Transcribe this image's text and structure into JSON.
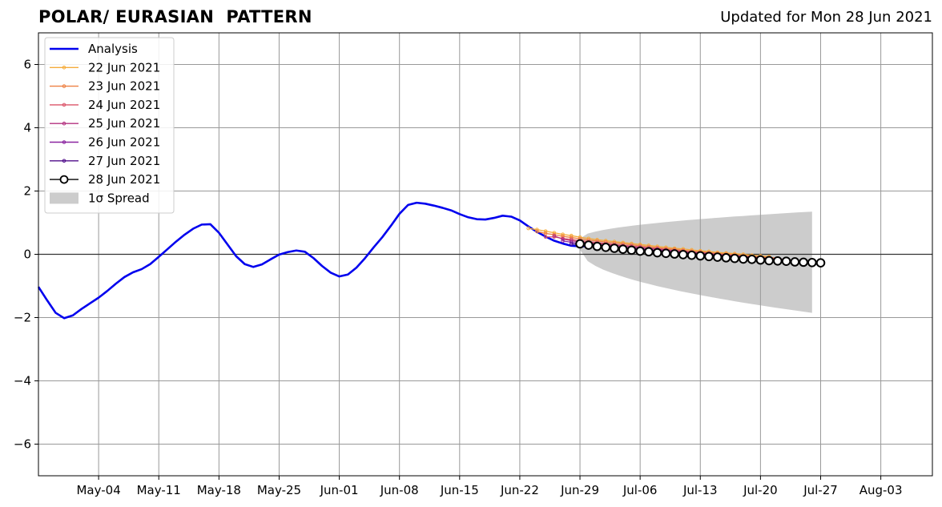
{
  "header": {
    "title": "POLAR/ EURASIAN  PATTERN",
    "updated": "Updated for Mon 28 Jun 2021"
  },
  "chart_data": {
    "type": "line",
    "title": "POLAR/ EURASIAN  PATTERN",
    "xlabel": "",
    "ylabel": "",
    "x_axis": {
      "type": "date",
      "min": "2021-04-27",
      "max": "2021-08-09",
      "ticks": [
        {
          "date": "2021-05-04",
          "label": "May-04"
        },
        {
          "date": "2021-05-11",
          "label": "May-11"
        },
        {
          "date": "2021-05-18",
          "label": "May-18"
        },
        {
          "date": "2021-05-25",
          "label": "May-25"
        },
        {
          "date": "2021-06-01",
          "label": "Jun-01"
        },
        {
          "date": "2021-06-08",
          "label": "Jun-08"
        },
        {
          "date": "2021-06-15",
          "label": "Jun-15"
        },
        {
          "date": "2021-06-22",
          "label": "Jun-22"
        },
        {
          "date": "2021-06-29",
          "label": "Jun-29"
        },
        {
          "date": "2021-07-06",
          "label": "Jul-06"
        },
        {
          "date": "2021-07-13",
          "label": "Jul-13"
        },
        {
          "date": "2021-07-20",
          "label": "Jul-20"
        },
        {
          "date": "2021-07-27",
          "label": "Jul-27"
        },
        {
          "date": "2021-08-03",
          "label": "Aug-03"
        }
      ]
    },
    "y_axis": {
      "min": -7,
      "max": 7,
      "ticks": [
        {
          "value": -6,
          "label": "−6"
        },
        {
          "value": -4,
          "label": "−4"
        },
        {
          "value": -2,
          "label": "−2"
        },
        {
          "value": 0,
          "label": "0"
        },
        {
          "value": 2,
          "label": "2"
        },
        {
          "value": 4,
          "label": "4"
        },
        {
          "value": 6,
          "label": "6"
        }
      ]
    },
    "grid": true,
    "zero_line": true,
    "legend_position": "upper-left",
    "analysis": {
      "name": "Analysis",
      "color": "#0000ee",
      "start_date": "2021-04-27",
      "values": [
        -1.03,
        -1.45,
        -1.85,
        -2.02,
        -1.93,
        -1.73,
        -1.55,
        -1.37,
        -1.16,
        -0.93,
        -0.72,
        -0.57,
        -0.47,
        -0.31,
        -0.08,
        0.16,
        0.4,
        0.62,
        0.81,
        0.94,
        0.95,
        0.68,
        0.31,
        -0.06,
        -0.31,
        -0.4,
        -0.32,
        -0.16,
        -0.01,
        0.07,
        0.12,
        0.08,
        -0.12,
        -0.37,
        -0.58,
        -0.7,
        -0.64,
        -0.42,
        -0.12,
        0.22,
        0.54,
        0.9,
        1.28,
        1.56,
        1.63,
        1.6,
        1.54,
        1.47,
        1.39,
        1.27,
        1.17,
        1.11,
        1.1,
        1.15,
        1.22,
        1.19,
        1.07,
        0.88,
        0.71,
        0.56,
        0.43,
        0.34,
        0.27,
        0.25,
        0.26
      ]
    },
    "forecasts": [
      {
        "name": "22 Jun 2021",
        "color": "#f5ac3c",
        "start_date": "2021-06-23",
        "values": [
          0.82,
          0.78,
          0.73,
          0.68,
          0.63,
          0.59,
          0.54,
          0.5,
          0.46,
          0.43,
          0.4,
          0.37,
          0.34,
          0.31,
          0.28,
          0.25,
          0.22,
          0.19,
          0.17,
          0.14,
          0.11,
          0.09,
          0.06,
          0.04,
          0.02,
          0.0,
          -0.03,
          -0.05,
          -0.07
        ]
      },
      {
        "name": "23 Jun 2021",
        "color": "#ee8043",
        "start_date": "2021-06-24",
        "values": [
          0.72,
          0.66,
          0.62,
          0.57,
          0.53,
          0.49,
          0.45,
          0.42,
          0.39,
          0.36,
          0.33,
          0.3,
          0.27,
          0.24,
          0.21,
          0.18,
          0.16,
          0.13,
          0.1,
          0.08,
          0.05,
          0.03,
          0.01,
          -0.01,
          -0.04,
          -0.06,
          -0.08,
          -0.1,
          -0.12
        ]
      },
      {
        "name": "24 Jun 2021",
        "color": "#dc5469",
        "start_date": "2021-06-25",
        "values": [
          0.55,
          0.55,
          0.5,
          0.47,
          0.43,
          0.4,
          0.37,
          0.34,
          0.31,
          0.28,
          0.26,
          0.23,
          0.2,
          0.18,
          0.15,
          0.12,
          0.1,
          0.07,
          0.05,
          0.03,
          0.0,
          -0.02,
          -0.04,
          -0.06,
          -0.09,
          -0.11,
          -0.13,
          -0.15,
          -0.16
        ]
      },
      {
        "name": "25 Jun 2021",
        "color": "#b3307f",
        "start_date": "2021-06-26",
        "values": [
          0.58,
          0.48,
          0.43,
          0.39,
          0.36,
          0.34,
          0.31,
          0.28,
          0.26,
          0.23,
          0.21,
          0.18,
          0.16,
          0.13,
          0.11,
          0.08,
          0.06,
          0.04,
          0.02,
          -0.01,
          -0.03,
          -0.05,
          -0.07,
          -0.09,
          -0.11,
          -0.13,
          -0.15,
          -0.17,
          -0.19
        ]
      },
      {
        "name": "26 Jun 2021",
        "color": "#8a24a0",
        "start_date": "2021-06-27",
        "values": [
          0.42,
          0.38,
          0.34,
          0.31,
          0.28,
          0.26,
          0.24,
          0.21,
          0.19,
          0.17,
          0.14,
          0.12,
          0.1,
          0.07,
          0.05,
          0.03,
          0.01,
          -0.01,
          -0.03,
          -0.05,
          -0.07,
          -0.09,
          -0.11,
          -0.13,
          -0.15,
          -0.17,
          -0.19,
          -0.21,
          -0.22
        ]
      },
      {
        "name": "27 Jun 2021",
        "color": "#4f0c8a",
        "start_date": "2021-06-28",
        "values": [
          0.33,
          0.3,
          0.28,
          0.25,
          0.23,
          0.21,
          0.19,
          0.17,
          0.15,
          0.13,
          0.1,
          0.08,
          0.06,
          0.04,
          0.02,
          0.0,
          -0.02,
          -0.04,
          -0.06,
          -0.07,
          -0.09,
          -0.11,
          -0.13,
          -0.15,
          -0.16,
          -0.18,
          -0.2,
          -0.22,
          -0.23
        ]
      },
      {
        "name": "28 Jun 2021",
        "color": "#000000",
        "marker": "open-circle",
        "start_date": "2021-06-29",
        "values": [
          0.33,
          0.29,
          0.25,
          0.22,
          0.19,
          0.16,
          0.13,
          0.1,
          0.08,
          0.05,
          0.03,
          0.01,
          -0.01,
          -0.03,
          -0.05,
          -0.07,
          -0.09,
          -0.11,
          -0.13,
          -0.15,
          -0.16,
          -0.18,
          -0.2,
          -0.21,
          -0.22,
          -0.24,
          -0.25,
          -0.26,
          -0.27
        ]
      }
    ],
    "spread": {
      "name": "1σ Spread",
      "color": "#cccccc",
      "start_date": "2021-06-29",
      "end_date": "2021-07-26",
      "upper_start": 0.5,
      "upper_end": 1.35,
      "lower_start": 0.15,
      "lower_end": -1.85
    }
  }
}
